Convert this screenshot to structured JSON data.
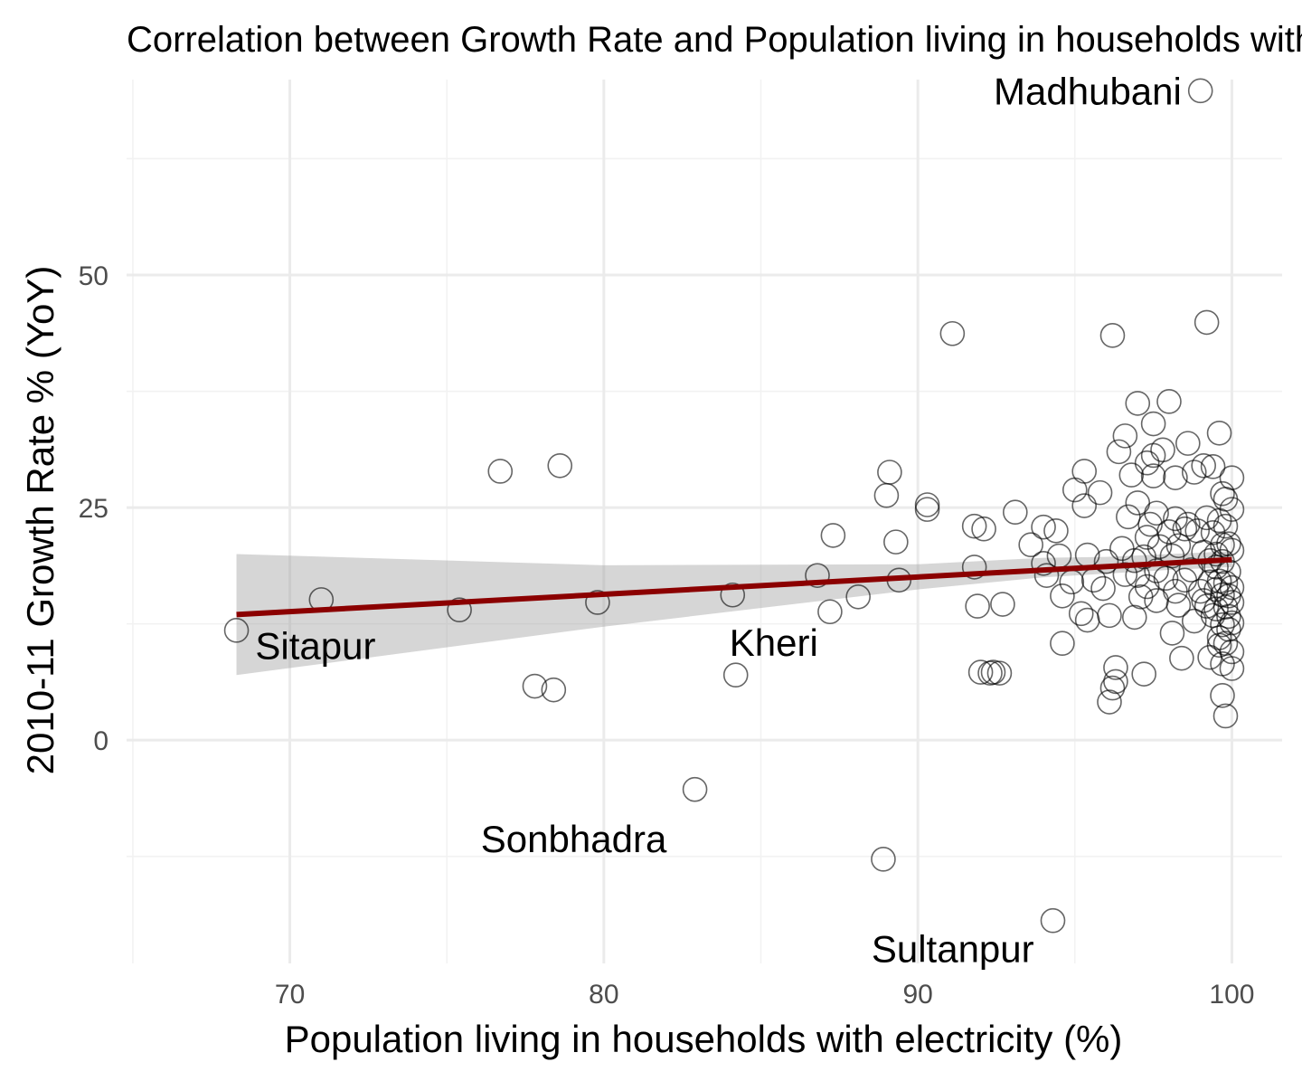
{
  "chart_data": {
    "type": "scatter",
    "title": "Correlation between Growth Rate and Population living in households with electricity",
    "xlabel": "Population living in households with electricity (%)",
    "ylabel": "2010-11 Growth Rate % (YoY)",
    "xlim": [
      64.8,
      101.6
    ],
    "ylim": [
      -24,
      71
    ],
    "x_ticks": [
      70,
      80,
      90,
      100
    ],
    "y_ticks": [
      0,
      25,
      50
    ],
    "grid": true,
    "colors": {
      "trend_line": "#8b0000",
      "confidence_band": "#999999",
      "points": "#000000"
    },
    "points": [
      [
        68.3,
        11.8
      ],
      [
        71.0,
        15.1
      ],
      [
        75.4,
        14.0
      ],
      [
        76.7,
        28.9
      ],
      [
        77.8,
        5.8
      ],
      [
        78.4,
        5.4
      ],
      [
        78.6,
        29.5
      ],
      [
        79.8,
        14.8
      ],
      [
        82.9,
        -5.3
      ],
      [
        84.1,
        15.6
      ],
      [
        84.2,
        7.0
      ],
      [
        86.8,
        17.7
      ],
      [
        87.2,
        13.8
      ],
      [
        87.3,
        22.0
      ],
      [
        88.1,
        15.4
      ],
      [
        88.9,
        -12.8
      ],
      [
        89.0,
        26.3
      ],
      [
        89.1,
        28.8
      ],
      [
        89.3,
        21.3
      ],
      [
        89.4,
        17.2
      ],
      [
        90.3,
        25.3
      ],
      [
        90.3,
        24.8
      ],
      [
        91.1,
        43.7
      ],
      [
        91.8,
        18.6
      ],
      [
        91.8,
        23.0
      ],
      [
        91.9,
        14.4
      ],
      [
        92.0,
        7.3
      ],
      [
        92.1,
        22.7
      ],
      [
        92.3,
        7.2
      ],
      [
        92.4,
        7.3
      ],
      [
        92.6,
        7.2
      ],
      [
        92.7,
        14.6
      ],
      [
        93.1,
        24.5
      ],
      [
        93.6,
        21.0
      ],
      [
        94.0,
        22.9
      ],
      [
        94.0,
        19.0
      ],
      [
        94.1,
        17.7
      ],
      [
        94.3,
        -19.4
      ],
      [
        94.4,
        22.5
      ],
      [
        94.5,
        19.8
      ],
      [
        94.6,
        15.5
      ],
      [
        94.6,
        10.4
      ],
      [
        94.9,
        17.0
      ],
      [
        95.0,
        26.9
      ],
      [
        95.2,
        13.6
      ],
      [
        95.3,
        28.9
      ],
      [
        95.3,
        25.2
      ],
      [
        95.4,
        19.9
      ],
      [
        95.4,
        12.9
      ],
      [
        95.6,
        17.2
      ],
      [
        95.8,
        26.6
      ],
      [
        95.9,
        16.3
      ],
      [
        96.0,
        19.2
      ],
      [
        96.1,
        13.4
      ],
      [
        96.1,
        4.1
      ],
      [
        96.2,
        5.6
      ],
      [
        96.2,
        43.5
      ],
      [
        96.3,
        7.8
      ],
      [
        96.3,
        6.3
      ],
      [
        96.4,
        31.0
      ],
      [
        96.5,
        20.6
      ],
      [
        96.6,
        32.7
      ],
      [
        96.6,
        17.8
      ],
      [
        96.7,
        24.0
      ],
      [
        96.8,
        28.5
      ],
      [
        96.9,
        13.2
      ],
      [
        96.9,
        19.3
      ],
      [
        97.0,
        36.2
      ],
      [
        97.0,
        25.5
      ],
      [
        97.0,
        17.7
      ],
      [
        97.1,
        15.4
      ],
      [
        97.2,
        7.1
      ],
      [
        97.2,
        19.7
      ],
      [
        97.3,
        29.8
      ],
      [
        97.3,
        21.8
      ],
      [
        97.3,
        16.5
      ],
      [
        97.4,
        23.2
      ],
      [
        97.5,
        34.0
      ],
      [
        97.5,
        30.6
      ],
      [
        97.5,
        28.4
      ],
      [
        97.6,
        24.4
      ],
      [
        97.6,
        18.2
      ],
      [
        97.6,
        15.0
      ],
      [
        97.7,
        20.8
      ],
      [
        97.8,
        31.2
      ],
      [
        97.9,
        17.4
      ],
      [
        98.0,
        36.4
      ],
      [
        98.0,
        22.4
      ],
      [
        98.1,
        19.8
      ],
      [
        98.1,
        11.5
      ],
      [
        98.2,
        28.2
      ],
      [
        98.2,
        23.8
      ],
      [
        98.2,
        16.0
      ],
      [
        98.3,
        14.5
      ],
      [
        98.3,
        20.9
      ],
      [
        98.4,
        8.8
      ],
      [
        98.5,
        17.2
      ],
      [
        98.5,
        22.7
      ],
      [
        98.6,
        31.9
      ],
      [
        98.6,
        23.2
      ],
      [
        98.7,
        18.3
      ],
      [
        98.8,
        12.8
      ],
      [
        98.8,
        28.8
      ],
      [
        98.9,
        22.5
      ],
      [
        99.0,
        16.0
      ],
      [
        99.0,
        69.8
      ],
      [
        99.1,
        29.5
      ],
      [
        99.1,
        20.2
      ],
      [
        99.1,
        15.0
      ],
      [
        99.2,
        23.9
      ],
      [
        99.2,
        14.4
      ],
      [
        99.2,
        44.9
      ],
      [
        99.3,
        19.3
      ],
      [
        99.3,
        17.0
      ],
      [
        99.3,
        8.9
      ],
      [
        99.4,
        22.3
      ],
      [
        99.4,
        29.4
      ],
      [
        99.4,
        13.4
      ],
      [
        99.5,
        18.6
      ],
      [
        99.5,
        20.0
      ],
      [
        99.5,
        16.2
      ],
      [
        99.5,
        14.1
      ],
      [
        99.6,
        23.6
      ],
      [
        99.6,
        33.0
      ],
      [
        99.6,
        17.1
      ],
      [
        99.6,
        11.0
      ],
      [
        99.6,
        10.2
      ],
      [
        99.7,
        4.8
      ],
      [
        99.7,
        26.5
      ],
      [
        99.7,
        21.0
      ],
      [
        99.7,
        19.2
      ],
      [
        99.7,
        15.6
      ],
      [
        99.7,
        12.4
      ],
      [
        99.7,
        8.2
      ],
      [
        99.8,
        2.6
      ],
      [
        99.8,
        25.9
      ],
      [
        99.8,
        23.0
      ],
      [
        99.8,
        16.9
      ],
      [
        99.8,
        14.3
      ],
      [
        99.8,
        10.4
      ],
      [
        99.9,
        21.1
      ],
      [
        99.9,
        18.1
      ],
      [
        99.9,
        15.5
      ],
      [
        99.9,
        13.3
      ],
      [
        99.9,
        11.9
      ],
      [
        100.0,
        28.2
      ],
      [
        100.0,
        24.8
      ],
      [
        100.0,
        20.4
      ],
      [
        100.0,
        16.4
      ],
      [
        100.0,
        14.8
      ],
      [
        100.0,
        12.6
      ],
      [
        100.0,
        9.5
      ],
      [
        100.0,
        7.7
      ]
    ],
    "trend_line": {
      "x": [
        68.3,
        100.0
      ],
      "y": [
        13.5,
        19.4
      ]
    },
    "confidence_band": {
      "x": [
        68.3,
        80,
        90,
        94,
        96,
        98,
        100
      ],
      "lower": [
        7.0,
        12.2,
        16.2,
        17.5,
        17.9,
        18.3,
        18.6
      ],
      "upper": [
        20.0,
        18.8,
        18.9,
        19.6,
        19.7,
        20.0,
        20.3
      ]
    },
    "labels": [
      {
        "text": "Madhubani",
        "x": 99.0,
        "y": 69.8,
        "anchor": "end",
        "dx": -0.6,
        "dy": 0
      },
      {
        "text": "Sitapur",
        "x": 68.3,
        "y": 11.8,
        "anchor": "start",
        "dx": 0.6,
        "dy": -1.6
      },
      {
        "text": "Kheri",
        "x": 84.2,
        "y": 7.0,
        "anchor": "start",
        "dx": -0.2,
        "dy": 3.5
      },
      {
        "text": "Sonbhadra",
        "x": 82.9,
        "y": -5.3,
        "anchor": "end",
        "dx": -0.9,
        "dy": -5.3
      },
      {
        "text": "Sultanpur",
        "x": 94.3,
        "y": -19.4,
        "anchor": "end",
        "dx": -0.6,
        "dy": -3.0
      }
    ]
  }
}
